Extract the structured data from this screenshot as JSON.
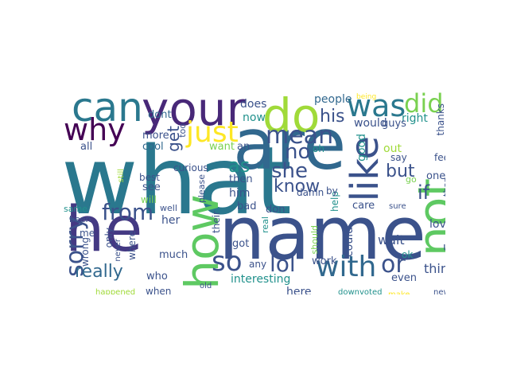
{
  "palette": {
    "dark_purple": "#440154",
    "indigo": "#3b528b",
    "teal": "#21918c",
    "green": "#5ec962",
    "lime": "#a0da39",
    "yellow": "#fde725"
  },
  "words": [
    {
      "text": "what",
      "color": "#2a788e"
    },
    {
      "text": "are",
      "color": "#31688e"
    },
    {
      "text": "name",
      "color": "#3b528b"
    },
    {
      "text": "he",
      "color": "#443983"
    },
    {
      "text": "your",
      "color": "#482878"
    },
    {
      "text": "can",
      "color": "#2a788e"
    },
    {
      "text": "do",
      "color": "#a0da39"
    },
    {
      "text": "was",
      "color": "#2a788e"
    },
    {
      "text": "did",
      "color": "#7ad151"
    },
    {
      "text": "why",
      "color": "#440154"
    },
    {
      "text": "just",
      "color": "#fde725"
    },
    {
      "text": "mean",
      "color": "#3b528b"
    },
    {
      "text": "like",
      "color": "#3b528b"
    },
    {
      "text": "how",
      "color": "#5ec962"
    },
    {
      "text": "not",
      "color": "#5ec962"
    },
    {
      "text": "so",
      "color": "#3b528b"
    },
    {
      "text": "lol",
      "color": "#3b528b"
    },
    {
      "text": "with",
      "color": "#31688e"
    },
    {
      "text": "or",
      "color": "#3b528b"
    },
    {
      "text": "from",
      "color": "#3b528b"
    },
    {
      "text": "sorry",
      "color": "#3b528b"
    },
    {
      "text": "really",
      "color": "#31688e"
    },
    {
      "text": "she",
      "color": "#3b528b"
    },
    {
      "text": "know",
      "color": "#3b528b"
    },
    {
      "text": "no",
      "color": "#3b528b"
    },
    {
      "text": "if",
      "color": "#3b528b"
    },
    {
      "text": "but",
      "color": "#3b528b"
    },
    {
      "text": "his",
      "color": "#3b528b"
    },
    {
      "text": "as",
      "color": "#21918c"
    },
    {
      "text": "get",
      "color": "#3b528b"
    },
    {
      "text": "people",
      "color": "#31688e"
    },
    {
      "text": "does",
      "color": "#3b528b"
    },
    {
      "text": "now",
      "color": "#21918c"
    },
    {
      "text": "would",
      "color": "#3b528b"
    },
    {
      "text": "right",
      "color": "#21918c"
    },
    {
      "text": "guys",
      "color": "#3b528b"
    },
    {
      "text": "thanks",
      "color": "#3b528b"
    },
    {
      "text": "help",
      "color": "#21918c"
    },
    {
      "text": "dont",
      "color": "#31688e"
    },
    {
      "text": "more",
      "color": "#3b528b"
    },
    {
      "text": "cool",
      "color": "#31688e"
    },
    {
      "text": "all",
      "color": "#3b528b"
    },
    {
      "text": "too",
      "color": "#3b528b"
    },
    {
      "text": "want",
      "color": "#7ad151"
    },
    {
      "text": "an",
      "color": "#3b528b"
    },
    {
      "text": "oh",
      "color": "#21918c"
    },
    {
      "text": "good",
      "color": "#21918c"
    },
    {
      "text": "out",
      "color": "#a0da39"
    },
    {
      "text": "say",
      "color": "#3b528b"
    },
    {
      "text": "feel",
      "color": "#3b528b"
    },
    {
      "text": "one",
      "color": "#3b528b"
    },
    {
      "text": "go",
      "color": "#7ad151"
    },
    {
      "text": "than",
      "color": "#3b528b"
    },
    {
      "text": "curious",
      "color": "#3b528b"
    },
    {
      "text": "best",
      "color": "#3b528b"
    },
    {
      "text": "still",
      "color": "#a0da39"
    },
    {
      "text": "see",
      "color": "#3b528b"
    },
    {
      "text": "will",
      "color": "#7ad151"
    },
    {
      "text": "please",
      "color": "#3b528b"
    },
    {
      "text": "then",
      "color": "#3b528b"
    },
    {
      "text": "him",
      "color": "#3b528b"
    },
    {
      "text": "damn",
      "color": "#3b528b"
    },
    {
      "text": "by",
      "color": "#3b528b"
    },
    {
      "text": "sure",
      "color": "#3b528b"
    },
    {
      "text": "same",
      "color": "#21918c"
    },
    {
      "text": "been",
      "color": "#3b528b"
    },
    {
      "text": "me",
      "color": "#3b528b"
    },
    {
      "text": "wrong",
      "color": "#3b528b"
    },
    {
      "text": "well",
      "color": "#3b528b"
    },
    {
      "text": "her",
      "color": "#3b528b"
    },
    {
      "text": "bad",
      "color": "#3b528b"
    },
    {
      "text": "don",
      "color": "#3b528b"
    },
    {
      "text": "care",
      "color": "#3b528b"
    },
    {
      "text": "real",
      "color": "#21918c"
    },
    {
      "text": "should",
      "color": "#7ad151"
    },
    {
      "text": "could",
      "color": "#3b528b"
    },
    {
      "text": "their",
      "color": "#3b528b"
    },
    {
      "text": "only",
      "color": "#3b528b"
    },
    {
      "text": "never",
      "color": "#3b528b"
    },
    {
      "text": "where",
      "color": "#3b528b"
    },
    {
      "text": "much",
      "color": "#3b528b"
    },
    {
      "text": "got",
      "color": "#3b528b"
    },
    {
      "text": "any",
      "color": "#3b528b"
    },
    {
      "text": "wait",
      "color": "#3b528b"
    },
    {
      "text": "love",
      "color": "#3b528b"
    },
    {
      "text": "up",
      "color": "#3b528b"
    },
    {
      "text": "ok",
      "color": "#21918c"
    },
    {
      "text": "think",
      "color": "#3b528b"
    },
    {
      "text": "work",
      "color": "#3b528b"
    },
    {
      "text": "even",
      "color": "#3b528b"
    },
    {
      "text": "who",
      "color": "#3b528b"
    },
    {
      "text": "interesting",
      "color": "#21918c"
    },
    {
      "text": "here",
      "color": "#3b528b"
    },
    {
      "text": "when",
      "color": "#3b528b"
    },
    {
      "text": "old",
      "color": "#3b528b"
    },
    {
      "text": "happened",
      "color": "#a0da39"
    },
    {
      "text": "downvoted",
      "color": "#21918c"
    },
    {
      "text": "make",
      "color": "#fde725"
    },
    {
      "text": "new",
      "color": "#3b528b"
    },
    {
      "text": "being",
      "color": "#fde725"
    }
  ]
}
